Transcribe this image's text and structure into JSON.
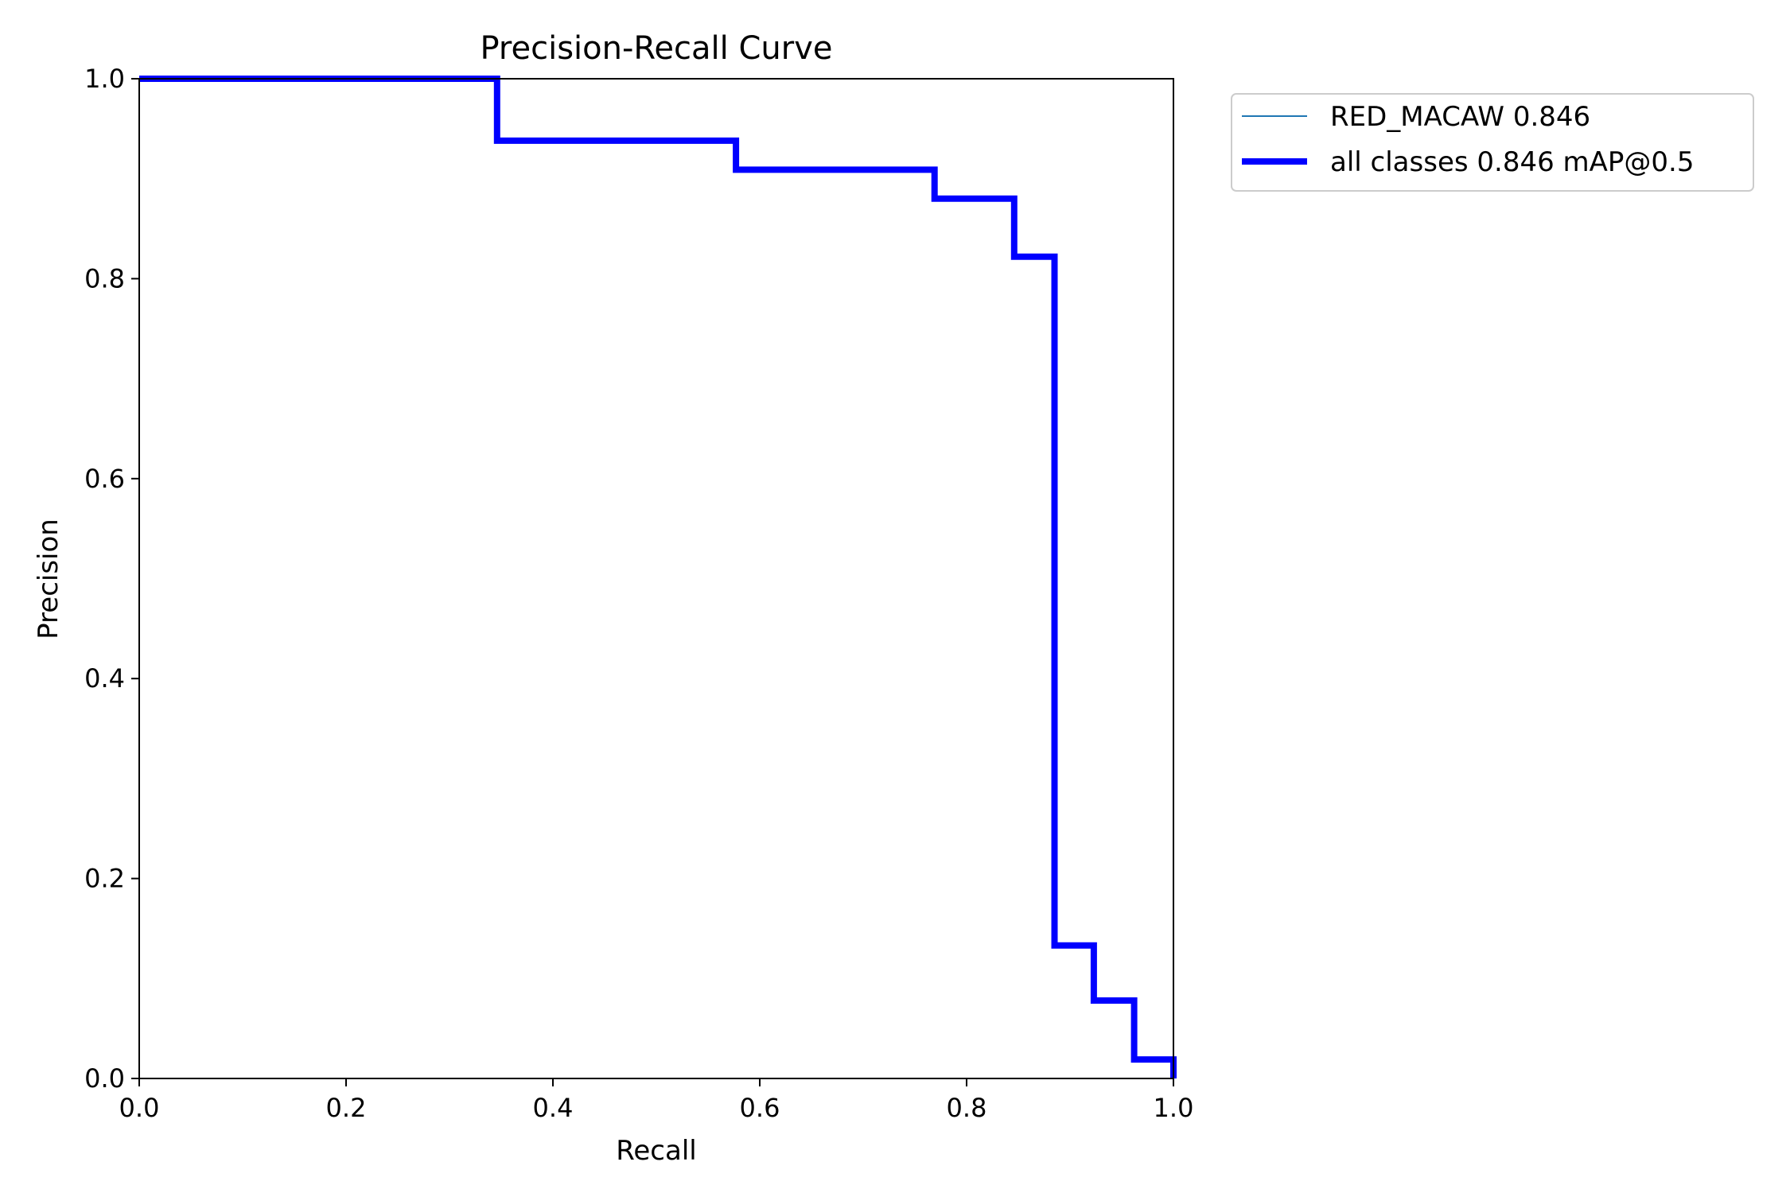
{
  "chart_data": {
    "type": "line",
    "title": "Precision-Recall Curve",
    "xlabel": "Recall",
    "ylabel": "Precision",
    "xlim": [
      0.0,
      1.0
    ],
    "ylim": [
      0.0,
      1.0
    ],
    "xticks": [
      "0.0",
      "0.2",
      "0.4",
      "0.6",
      "0.8",
      "1.0"
    ],
    "yticks": [
      "0.0",
      "0.2",
      "0.4",
      "0.6",
      "0.8",
      "1.0"
    ],
    "grid": false,
    "legend_position": "outside-top-right",
    "series": [
      {
        "name": "RED_MACAW 0.846",
        "color": "#1f77b4",
        "line": "thin",
        "x": [
          0.0,
          0.346,
          0.346,
          0.577,
          0.577,
          0.769,
          0.769,
          0.846,
          0.846,
          0.885,
          0.885,
          0.923,
          0.923,
          0.962,
          0.962,
          1.0,
          1.0
        ],
        "y": [
          1.0,
          1.0,
          0.938,
          0.938,
          0.909,
          0.909,
          0.88,
          0.88,
          0.822,
          0.822,
          0.133,
          0.133,
          0.078,
          0.078,
          0.019,
          0.019,
          0.0
        ]
      },
      {
        "name": "all classes 0.846 mAP@0.5",
        "color": "#0000ff",
        "line": "thick",
        "x": [
          0.0,
          0.346,
          0.346,
          0.577,
          0.577,
          0.769,
          0.769,
          0.846,
          0.846,
          0.885,
          0.885,
          0.923,
          0.923,
          0.962,
          0.962,
          1.0,
          1.0
        ],
        "y": [
          1.0,
          1.0,
          0.938,
          0.938,
          0.909,
          0.909,
          0.88,
          0.88,
          0.822,
          0.822,
          0.133,
          0.133,
          0.078,
          0.078,
          0.019,
          0.019,
          0.0
        ]
      }
    ]
  }
}
